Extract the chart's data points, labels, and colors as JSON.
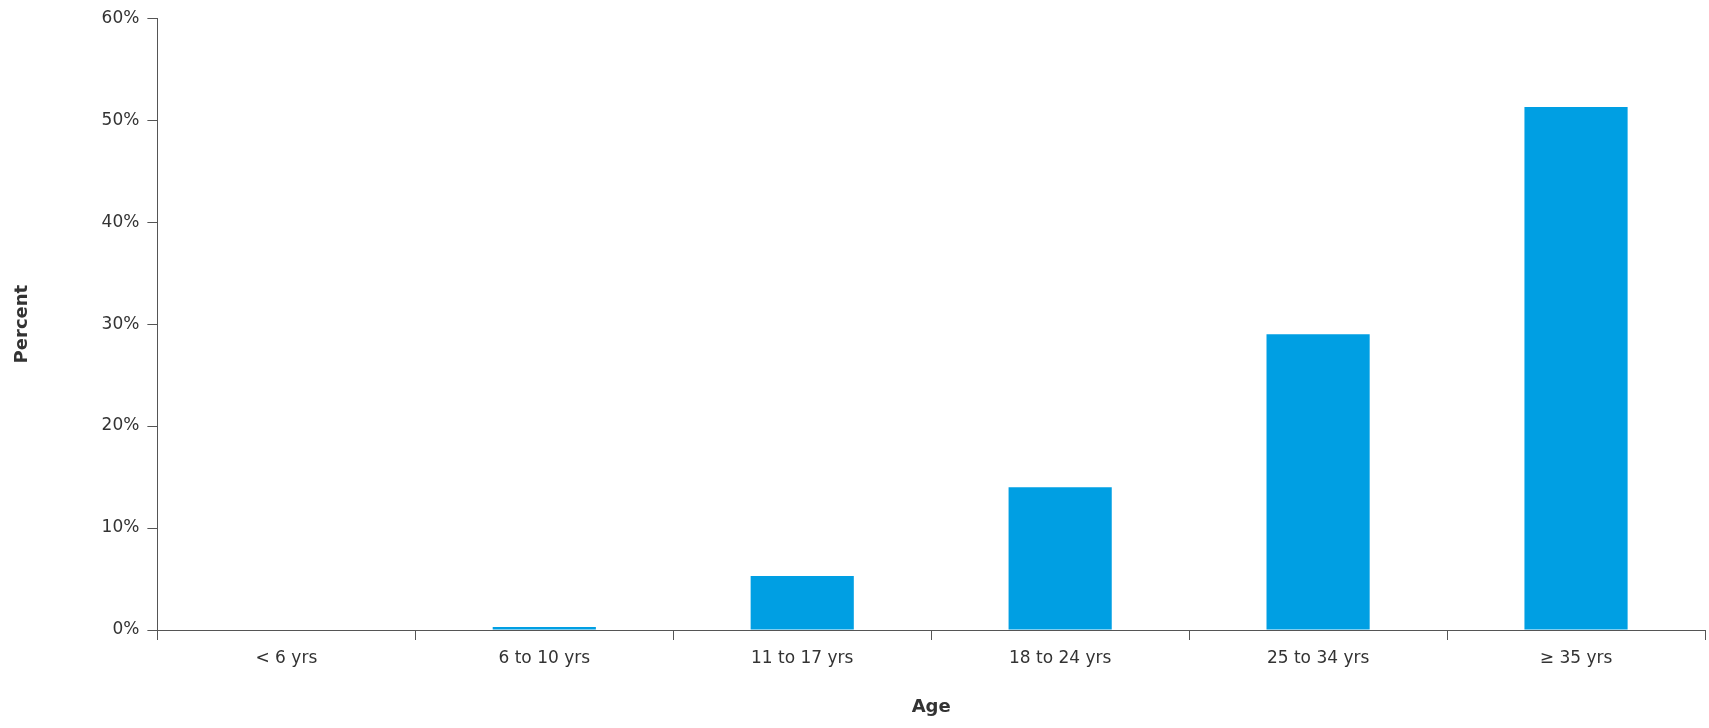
{
  "chart_data": {
    "type": "bar",
    "xlabel": "Age",
    "ylabel": "Percent",
    "categories": [
      "< 6 yrs",
      "6 to 10 yrs",
      "11 to 17 yrs",
      "18 to 24 yrs",
      "25 to 34 yrs",
      "≥ 35 yrs"
    ],
    "values": [
      0,
      0.3,
      5.3,
      14,
      29,
      51.3
    ],
    "color": "#009fe3",
    "ylim": [
      0,
      60
    ],
    "yticks": [
      {
        "value": 0,
        "label": "0%"
      },
      {
        "value": 10,
        "label": "10%"
      },
      {
        "value": 20,
        "label": "20%"
      },
      {
        "value": 30,
        "label": "30%"
      },
      {
        "value": 40,
        "label": "40%"
      },
      {
        "value": 50,
        "label": "50%"
      },
      {
        "value": 60,
        "label": "60%"
      }
    ],
    "grid": false,
    "legend": false
  }
}
